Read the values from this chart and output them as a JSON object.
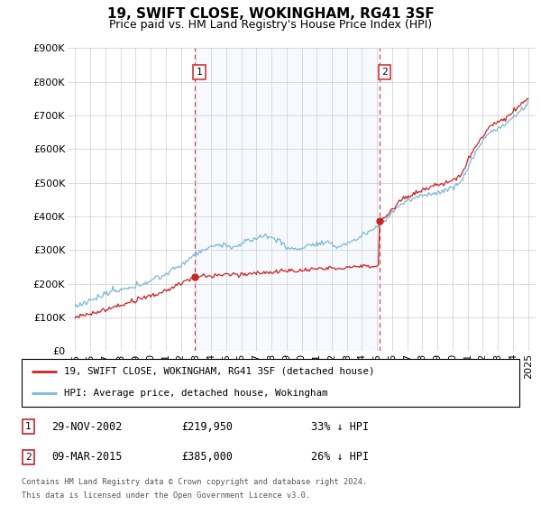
{
  "title": "19, SWIFT CLOSE, WOKINGHAM, RG41 3SF",
  "subtitle": "Price paid vs. HM Land Registry's House Price Index (HPI)",
  "ylim": [
    0,
    900000
  ],
  "yticks": [
    0,
    100000,
    200000,
    300000,
    400000,
    500000,
    600000,
    700000,
    800000,
    900000
  ],
  "ytick_labels": [
    "£0",
    "£100K",
    "£200K",
    "£300K",
    "£400K",
    "£500K",
    "£600K",
    "£700K",
    "£800K",
    "£900K"
  ],
  "hpi_color": "#7ab8d9",
  "price_color": "#cc2222",
  "vline_color": "#dd3333",
  "purchase1_date": 2002.91,
  "purchase1_price": 219950,
  "purchase2_date": 2015.19,
  "purchase2_price": 385000,
  "legend_price_label": "19, SWIFT CLOSE, WOKINGHAM, RG41 3SF (detached house)",
  "legend_hpi_label": "HPI: Average price, detached house, Wokingham",
  "table_row1": [
    "1",
    "29-NOV-2002",
    "£219,950",
    "33% ↓ HPI"
  ],
  "table_row2": [
    "2",
    "09-MAR-2015",
    "£385,000",
    "26% ↓ HPI"
  ],
  "footnote1": "Contains HM Land Registry data © Crown copyright and database right 2024.",
  "footnote2": "This data is licensed under the Open Government Licence v3.0.",
  "bg_color": "#ffffff",
  "grid_color": "#cccccc",
  "shade_color": "#ddeeff",
  "title_fontsize": 11,
  "subtitle_fontsize": 9,
  "tick_fontsize": 8
}
